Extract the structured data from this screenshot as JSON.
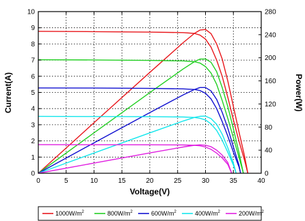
{
  "chart_data": {
    "type": "line",
    "xlabel": "Voltage(V)",
    "ylabel": "Current(A)",
    "y2label": "Power(W)",
    "xlim": [
      0,
      40
    ],
    "ylim": [
      0,
      10
    ],
    "y2lim": [
      0,
      280
    ],
    "xticks": [
      "0",
      "5",
      "10",
      "15",
      "20",
      "25",
      "30",
      "35",
      "40"
    ],
    "yticks": [
      "0",
      "1",
      "2",
      "3",
      "4",
      "5",
      "6",
      "7",
      "8",
      "9",
      "10"
    ],
    "y2ticks": [
      "0",
      "40",
      "80",
      "120",
      "160",
      "200",
      "240",
      "280"
    ],
    "grid": true,
    "legend_position": "bottom",
    "series": [
      {
        "name": "1000W/m",
        "superscript": "2",
        "color": "#e8161b",
        "iv": [
          [
            0,
            8.78
          ],
          [
            10,
            8.76
          ],
          [
            20,
            8.73
          ],
          [
            26,
            8.7
          ],
          [
            28,
            8.65
          ],
          [
            29,
            8.55
          ],
          [
            30,
            8.3
          ],
          [
            31,
            7.8
          ],
          [
            32,
            7.0
          ],
          [
            33,
            6.0
          ],
          [
            34,
            4.7
          ],
          [
            35,
            3.3
          ],
          [
            36,
            2.0
          ],
          [
            37,
            0.8
          ],
          [
            37.6,
            0
          ]
        ],
        "pv": [
          [
            0,
            0
          ],
          [
            10,
            87.6
          ],
          [
            20,
            174.6
          ],
          [
            26,
            226.2
          ],
          [
            28,
            242.2
          ],
          [
            29,
            248.0
          ],
          [
            30,
            249.0
          ],
          [
            31,
            241.8
          ],
          [
            32,
            224.0
          ],
          [
            33,
            198.0
          ],
          [
            34,
            159.8
          ],
          [
            35,
            115.5
          ],
          [
            36,
            72.0
          ],
          [
            37,
            29.6
          ],
          [
            37.6,
            0
          ]
        ]
      },
      {
        "name": "800W/m",
        "superscript": "2",
        "color": "#22cf22",
        "iv": [
          [
            0,
            7.02
          ],
          [
            10,
            7.01
          ],
          [
            20,
            6.98
          ],
          [
            26,
            6.95
          ],
          [
            28,
            6.9
          ],
          [
            29,
            6.82
          ],
          [
            30,
            6.6
          ],
          [
            31,
            6.2
          ],
          [
            32,
            5.5
          ],
          [
            33,
            4.5
          ],
          [
            34,
            3.4
          ],
          [
            35,
            2.2
          ],
          [
            36,
            1.0
          ],
          [
            36.8,
            0
          ]
        ],
        "pv": [
          [
            0,
            0
          ],
          [
            10,
            70.1
          ],
          [
            20,
            139.6
          ],
          [
            26,
            180.7
          ],
          [
            28,
            193.2
          ],
          [
            29,
            197.8
          ],
          [
            30,
            198.0
          ],
          [
            31,
            192.2
          ],
          [
            32,
            176.0
          ],
          [
            33,
            148.5
          ],
          [
            34,
            115.6
          ],
          [
            35,
            77.0
          ],
          [
            36,
            36.0
          ],
          [
            36.8,
            0
          ]
        ]
      },
      {
        "name": "600W/m",
        "superscript": "2",
        "color": "#1010d0",
        "iv": [
          [
            0,
            5.28
          ],
          [
            10,
            5.27
          ],
          [
            20,
            5.25
          ],
          [
            26,
            5.22
          ],
          [
            28,
            5.18
          ],
          [
            29,
            5.12
          ],
          [
            30,
            4.95
          ],
          [
            31,
            4.6
          ],
          [
            32,
            4.0
          ],
          [
            33,
            3.2
          ],
          [
            34,
            2.3
          ],
          [
            35,
            1.3
          ],
          [
            36,
            0.4
          ],
          [
            36.3,
            0
          ]
        ],
        "pv": [
          [
            0,
            0
          ],
          [
            10,
            52.7
          ],
          [
            20,
            105.0
          ],
          [
            26,
            135.7
          ],
          [
            28,
            145.0
          ],
          [
            29,
            148.5
          ],
          [
            30,
            148.5
          ],
          [
            31,
            142.6
          ],
          [
            32,
            128.0
          ],
          [
            33,
            105.6
          ],
          [
            34,
            78.2
          ],
          [
            35,
            45.5
          ],
          [
            36,
            14.4
          ],
          [
            36.3,
            0
          ]
        ]
      },
      {
        "name": "400W/m",
        "superscript": "2",
        "color": "#12e6ec",
        "iv": [
          [
            0,
            3.52
          ],
          [
            10,
            3.51
          ],
          [
            20,
            3.5
          ],
          [
            26,
            3.48
          ],
          [
            28,
            3.45
          ],
          [
            29,
            3.4
          ],
          [
            30,
            3.3
          ],
          [
            31,
            3.05
          ],
          [
            32,
            2.65
          ],
          [
            33,
            2.05
          ],
          [
            34,
            1.3
          ],
          [
            35,
            0.5
          ],
          [
            35.5,
            0
          ]
        ],
        "pv": [
          [
            0,
            0
          ],
          [
            10,
            35.1
          ],
          [
            20,
            70.0
          ],
          [
            26,
            90.5
          ],
          [
            28,
            96.6
          ],
          [
            29,
            98.6
          ],
          [
            30,
            99.0
          ],
          [
            31,
            94.6
          ],
          [
            32,
            84.8
          ],
          [
            33,
            67.7
          ],
          [
            34,
            44.2
          ],
          [
            35,
            17.5
          ],
          [
            35.5,
            0
          ]
        ]
      },
      {
        "name": "200W/m",
        "superscript": "2",
        "color": "#e01ee0",
        "iv": [
          [
            0,
            1.77
          ],
          [
            10,
            1.765
          ],
          [
            20,
            1.76
          ],
          [
            26,
            1.75
          ],
          [
            28,
            1.73
          ],
          [
            29,
            1.7
          ],
          [
            30,
            1.62
          ],
          [
            31,
            1.48
          ],
          [
            32,
            1.25
          ],
          [
            33,
            0.95
          ],
          [
            34,
            0.55
          ],
          [
            34.7,
            0
          ]
        ],
        "pv": [
          [
            0,
            0
          ],
          [
            10,
            17.65
          ],
          [
            20,
            35.2
          ],
          [
            26,
            45.5
          ],
          [
            28,
            48.4
          ],
          [
            29,
            49.3
          ],
          [
            30,
            48.6
          ],
          [
            31,
            45.9
          ],
          [
            32,
            40.0
          ],
          [
            33,
            31.4
          ],
          [
            34,
            18.7
          ],
          [
            34.7,
            0
          ]
        ]
      }
    ]
  }
}
